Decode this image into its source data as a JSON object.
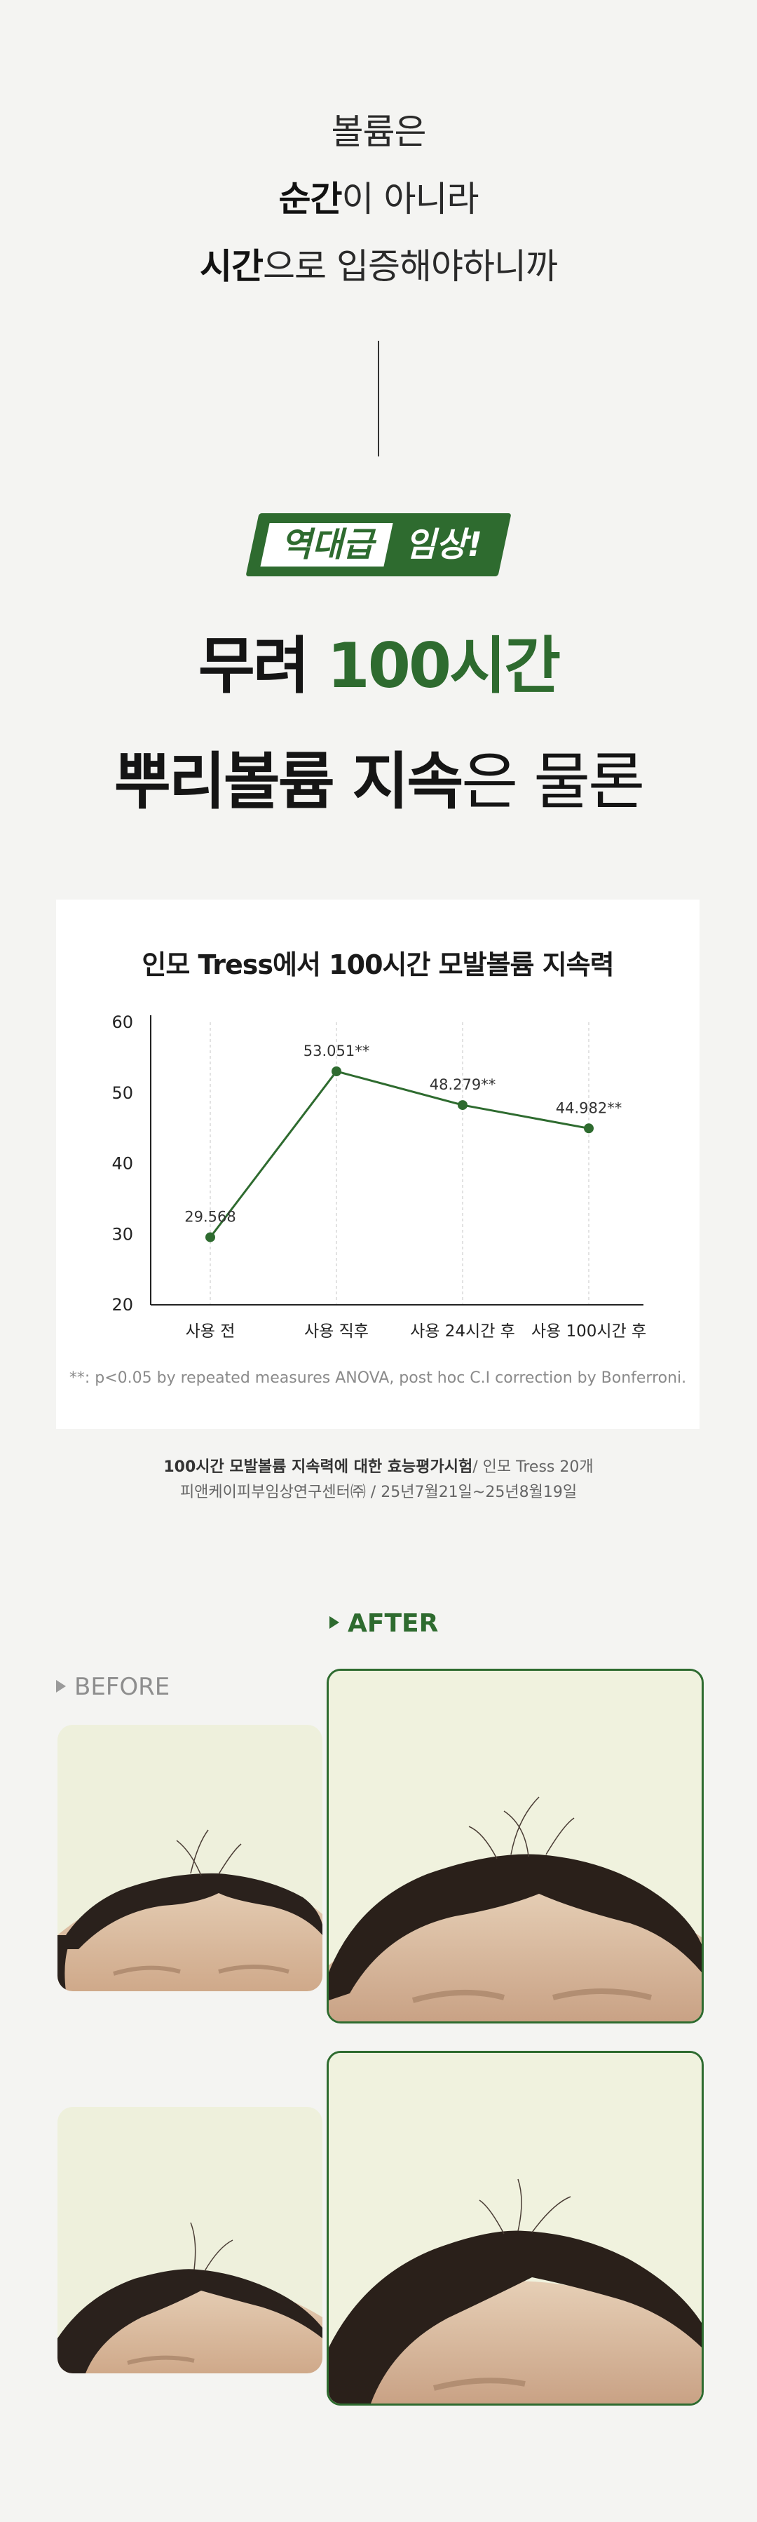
{
  "intro": {
    "line1": "볼륨은",
    "line2_bold": "순간",
    "line2_rest": "이 아니라",
    "line3_bold": "시간",
    "line3_rest": "으로 입증해야하니까"
  },
  "badge": {
    "part1": "역대급",
    "part2": "임상!"
  },
  "headline": {
    "line1_prefix": "무려 ",
    "line1_green": "100시간",
    "line2_bold": "뿌리볼륨 지속",
    "line2_light": "은 물론"
  },
  "chart_data": {
    "type": "line",
    "title": "인모 Tress에서 100시간 모발볼륨 지속력",
    "categories": [
      "사용 전",
      "사용 직후",
      "사용 24시간 후",
      "사용 100시간 후"
    ],
    "values": [
      29.568,
      53.051,
      48.279,
      44.982
    ],
    "data_labels": [
      "29.568",
      "53.051**",
      "48.279**",
      "44.982**"
    ],
    "ylim": [
      20,
      60
    ],
    "yticks": [
      20,
      30,
      40,
      50,
      60
    ],
    "grid": true,
    "line_color": "#2e6b2f",
    "footnote": "**: p<0.05 by repeated measures ANOVA, post hoc C.I correction by Bonferroni."
  },
  "source": {
    "line1_bold": "100시간 모발볼륨 지속력에 대한 효능평가시험",
    "line1_rest": "/ 인모 Tress 20개",
    "line2": "피앤케이피부임상연구센터㈜ / 25년7월21일~25년8월19일"
  },
  "labels": {
    "after": "AFTER",
    "before": "BEFORE"
  },
  "colors": {
    "brand_green": "#2e6b2f",
    "background": "#f4f4f2"
  }
}
